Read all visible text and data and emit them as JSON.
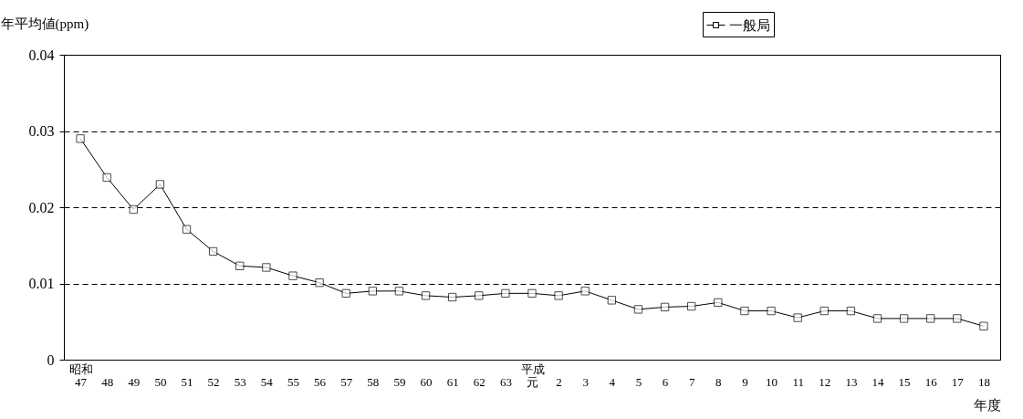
{
  "chart_data": {
    "type": "line",
    "ylabel": "年平均値(ppm)",
    "xlabel": "年度",
    "categories": [
      "昭和47",
      "48",
      "49",
      "50",
      "51",
      "52",
      "53",
      "54",
      "55",
      "56",
      "57",
      "58",
      "59",
      "60",
      "61",
      "62",
      "63",
      "平成元",
      "2",
      "3",
      "4",
      "5",
      "6",
      "7",
      "8",
      "9",
      "10",
      "11",
      "12",
      "13",
      "14",
      "15",
      "16",
      "17",
      "18"
    ],
    "series": [
      {
        "name": "一般局",
        "color": "#000000",
        "values": [
          0.029,
          0.0239,
          0.0197,
          0.023,
          0.0171,
          0.0142,
          0.0123,
          0.0121,
          0.011,
          0.0101,
          0.0087,
          0.009,
          0.009,
          0.0084,
          0.0082,
          0.0084,
          0.0087,
          0.0087,
          0.0084,
          0.009,
          0.0078,
          0.0066,
          0.0069,
          0.007,
          0.0075,
          0.0064,
          0.0064,
          0.0055,
          0.0064,
          0.0064,
          0.0054,
          0.0054,
          0.0054,
          0.0054,
          0.0044
        ]
      }
    ],
    "ylim": [
      0,
      0.04
    ],
    "yticks": [
      0,
      0.01,
      0.02,
      0.03,
      0.04
    ],
    "grid": "y",
    "legend": "top right",
    "marker": "square",
    "line_style": "solid"
  }
}
